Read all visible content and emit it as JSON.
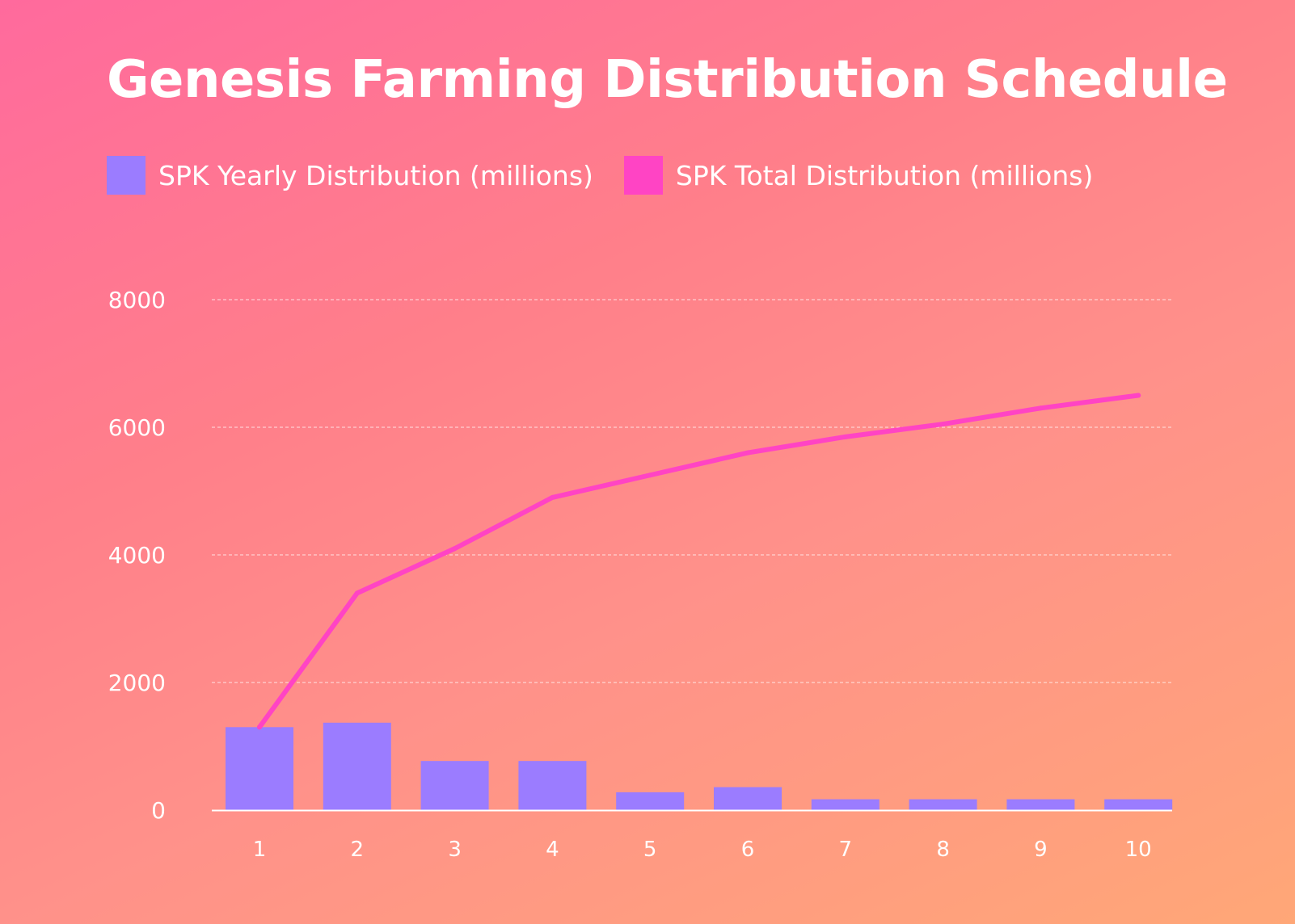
{
  "colors": {
    "bar": "#9b7cff",
    "line": "#ff44c4",
    "axis_text": "#ffffff",
    "grid": "#ffffff"
  },
  "chart_data": {
    "type": "bar",
    "title": "Genesis Farming Distribution Schedule",
    "categories": [
      "1",
      "2",
      "3",
      "4",
      "5",
      "6",
      "7",
      "8",
      "9",
      "10"
    ],
    "series": [
      {
        "name": "SPK Yearly Distribution (millions)",
        "type": "bar",
        "values": [
          1300,
          1370,
          770,
          770,
          280,
          360,
          170,
          170,
          170,
          170
        ]
      },
      {
        "name": "SPK Total Distribution (millions)",
        "type": "line",
        "values": [
          1300,
          3400,
          4100,
          4900,
          5250,
          5600,
          5850,
          6050,
          6300,
          6500
        ]
      }
    ],
    "yticks": [
      0,
      2000,
      4000,
      6000,
      8000
    ],
    "ylim": [
      0,
      8000
    ],
    "grid": true,
    "legend_position": "top-left"
  }
}
